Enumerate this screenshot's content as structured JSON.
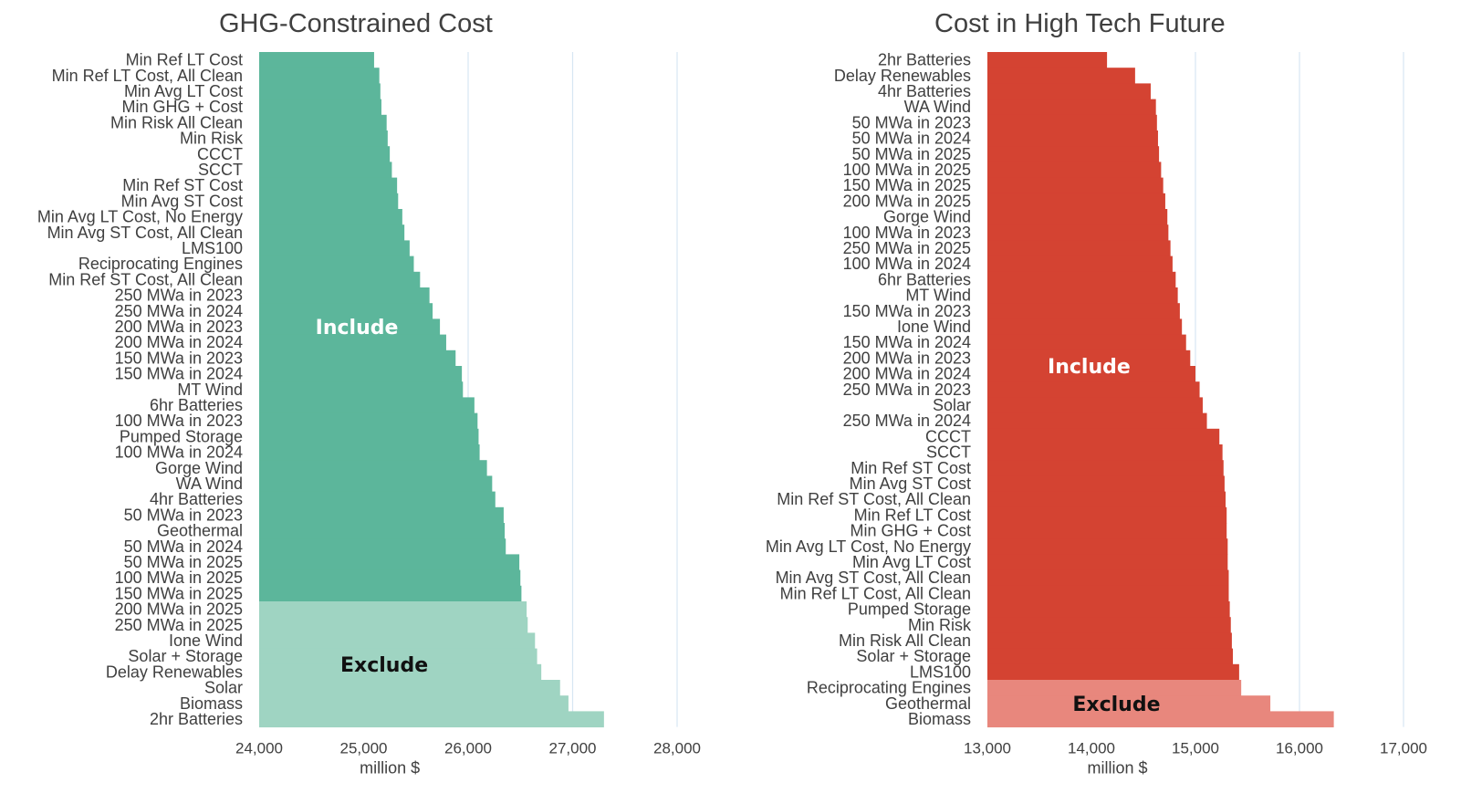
{
  "chart_data": [
    {
      "type": "bar",
      "orientation": "horizontal",
      "title": "GHG-Constrained Cost",
      "xlabel": "million $",
      "xlim": [
        24000,
        28000
      ],
      "xticks": [
        "24,000",
        "25,000",
        "26,000",
        "27,000",
        "28,000"
      ],
      "xtick_values": [
        24000,
        25000,
        26000,
        27000,
        28000
      ],
      "grid": "vertical",
      "include_label": "Include",
      "exclude_label": "Exclude",
      "include_color": "#5cb69b",
      "exclude_color": "#9fd4c2",
      "categories": [
        "Min Ref LT Cost",
        "Min Ref LT Cost, All Clean",
        "Min Avg LT Cost",
        "Min GHG + Cost",
        "Min Risk All Clean",
        "Min Risk",
        "CCCT",
        "SCCT",
        "Min Ref ST Cost",
        "Min Avg ST Cost",
        "Min Avg LT Cost, No Energy",
        "Min Avg ST Cost, All Clean",
        "LMS100",
        "Reciprocating Engines",
        "Min Ref ST Cost, All Clean",
        "250 MWa in 2023",
        "250 MWa in 2024",
        "200 MWa in 2023",
        "200 MWa in 2024",
        "150 MWa in 2023",
        "150 MWa in 2024",
        "MT Wind",
        "6hr Batteries",
        "100 MWa in 2023",
        "Pumped Storage",
        "100 MWa in 2024",
        "Gorge Wind",
        "WA Wind",
        "4hr Batteries",
        "50 MWa in 2023",
        "Geothermal",
        "50 MWa in 2024",
        "50 MWa in 2025",
        "100 MWa in 2025",
        "150 MWa in 2025",
        "200 MWa in 2025",
        "250 MWa in 2025",
        "Ione Wind",
        "Solar + Storage",
        "Delay Renewables",
        "Solar",
        "Biomass",
        "2hr Batteries"
      ],
      "values": [
        25100,
        25150,
        25160,
        25170,
        25220,
        25230,
        25250,
        25270,
        25320,
        25330,
        25370,
        25390,
        25440,
        25480,
        25540,
        25630,
        25660,
        25730,
        25790,
        25880,
        25940,
        25950,
        26060,
        26090,
        26100,
        26110,
        26180,
        26230,
        26260,
        26340,
        26350,
        26360,
        26490,
        26500,
        26510,
        26560,
        26570,
        26640,
        26660,
        26700,
        26880,
        26960,
        27300
      ],
      "include_count": 35
    },
    {
      "type": "bar",
      "orientation": "horizontal",
      "title": "Cost in High Tech Future",
      "xlabel": "million $",
      "xlim": [
        13000,
        17000
      ],
      "xticks": [
        "13,000",
        "14,000",
        "15,000",
        "16,000",
        "17,000"
      ],
      "xtick_values": [
        13000,
        14000,
        15000,
        16000,
        17000
      ],
      "grid": "vertical",
      "include_label": "Include",
      "exclude_label": "Exclude",
      "include_color": "#d44332",
      "exclude_color": "#e8877d",
      "categories": [
        "2hr Batteries",
        "Delay Renewables",
        "4hr Batteries",
        "WA Wind",
        "50 MWa in 2023",
        "50 MWa in 2024",
        "50 MWa in 2025",
        "100 MWa in 2025",
        "150 MWa in 2025",
        "200 MWa in 2025",
        "Gorge Wind",
        "100 MWa in 2023",
        "250 MWa in 2025",
        "100 MWa in 2024",
        "6hr Batteries",
        "MT Wind",
        "150 MWa in 2023",
        "Ione Wind",
        "150 MWa in 2024",
        "200 MWa in 2023",
        "200 MWa in 2024",
        "250 MWa in 2023",
        "Solar",
        "250 MWa in 2024",
        "CCCT",
        "SCCT",
        "Min Ref ST Cost",
        "Min Avg ST Cost",
        "Min Ref ST Cost, All Clean",
        "Min Ref LT Cost",
        "Min GHG + Cost",
        "Min Avg LT Cost, No Energy",
        "Min Avg LT Cost",
        "Min Avg ST Cost, All Clean",
        "Min Ref LT Cost, All Clean",
        "Pumped Storage",
        "Min Risk",
        "Min Risk All Clean",
        "Solar + Storage",
        "LMS100",
        "Reciprocating Engines",
        "Geothermal",
        "Biomass"
      ],
      "values": [
        14150,
        14420,
        14570,
        14620,
        14630,
        14640,
        14650,
        14670,
        14690,
        14710,
        14730,
        14740,
        14760,
        14780,
        14810,
        14830,
        14850,
        14870,
        14910,
        14950,
        15000,
        15040,
        15070,
        15110,
        15230,
        15260,
        15270,
        15280,
        15290,
        15300,
        15300,
        15310,
        15310,
        15320,
        15320,
        15330,
        15340,
        15350,
        15360,
        15420,
        15440,
        15720,
        16330
      ],
      "include_count": 40
    }
  ]
}
